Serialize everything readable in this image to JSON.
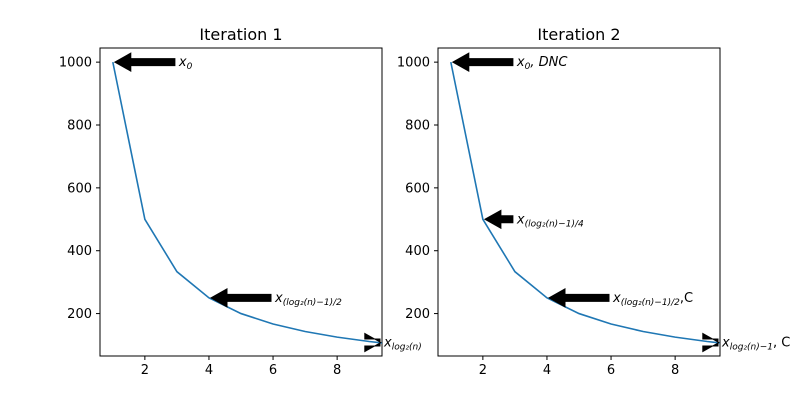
{
  "chart_data": [
    {
      "type": "line",
      "title": "Iteration 1",
      "xlabel": "",
      "ylabel": "",
      "x": [
        1,
        2,
        3,
        4,
        5,
        6,
        7,
        8,
        9,
        10
      ],
      "series": [
        {
          "values": [
            1000,
            500,
            333.3,
            250,
            200,
            166.7,
            142.9,
            125,
            111.1,
            100
          ]
        }
      ],
      "xlim": [
        0.6,
        9.4
      ],
      "ylim": [
        65,
        1045
      ],
      "xticks": [
        "2",
        "4",
        "6",
        "8"
      ],
      "yticks": [
        "200",
        "400",
        "600",
        "800",
        "1000"
      ],
      "line_color": "#1f77b4",
      "grid": false,
      "annotations": [
        {
          "label_base": "x",
          "label_sub": "0",
          "label_suffix": "",
          "point": [
            1,
            1000
          ],
          "text_at": [
            3,
            1000
          ]
        },
        {
          "label_base": "x",
          "label_sub": "(log₂(n)−1)/2",
          "label_suffix": "",
          "point": [
            4,
            250
          ],
          "text_at": [
            6,
            250
          ]
        },
        {
          "label_base": "x",
          "label_sub": "log₂(n)",
          "label_suffix": "",
          "point": [
            9.3,
            108
          ],
          "text_at": [
            9.4,
            108
          ]
        }
      ]
    },
    {
      "type": "line",
      "title": "Iteration 2",
      "xlabel": "",
      "ylabel": "",
      "x": [
        1,
        2,
        3,
        4,
        5,
        6,
        7,
        8,
        9,
        10
      ],
      "series": [
        {
          "values": [
            1000,
            500,
            333.3,
            250,
            200,
            166.7,
            142.9,
            125,
            111.1,
            100
          ]
        }
      ],
      "xlim": [
        0.6,
        9.4
      ],
      "ylim": [
        65,
        1045
      ],
      "xticks": [
        "2",
        "4",
        "6",
        "8"
      ],
      "yticks": [
        "200",
        "400",
        "600",
        "800",
        "1000"
      ],
      "line_color": "#1f77b4",
      "grid": false,
      "annotations": [
        {
          "label_base": "x",
          "label_sub": "0",
          "label_suffix": ", DNC",
          "point": [
            1,
            1000
          ],
          "text_at": [
            3,
            1000
          ]
        },
        {
          "label_base": "x",
          "label_sub": "(log₂(n)−1)/4",
          "label_suffix": "",
          "point": [
            2,
            500
          ],
          "text_at": [
            3,
            500
          ]
        },
        {
          "label_base": "x",
          "label_sub": "(log₂(n)−1)/2",
          "label_suffix": ",C",
          "point": [
            4,
            250
          ],
          "text_at": [
            6,
            250
          ]
        },
        {
          "label_base": "x",
          "label_sub": "log₂(n)−1",
          "label_suffix": ", C",
          "point": [
            9.3,
            108
          ],
          "text_at": [
            9.4,
            108
          ]
        }
      ]
    }
  ]
}
